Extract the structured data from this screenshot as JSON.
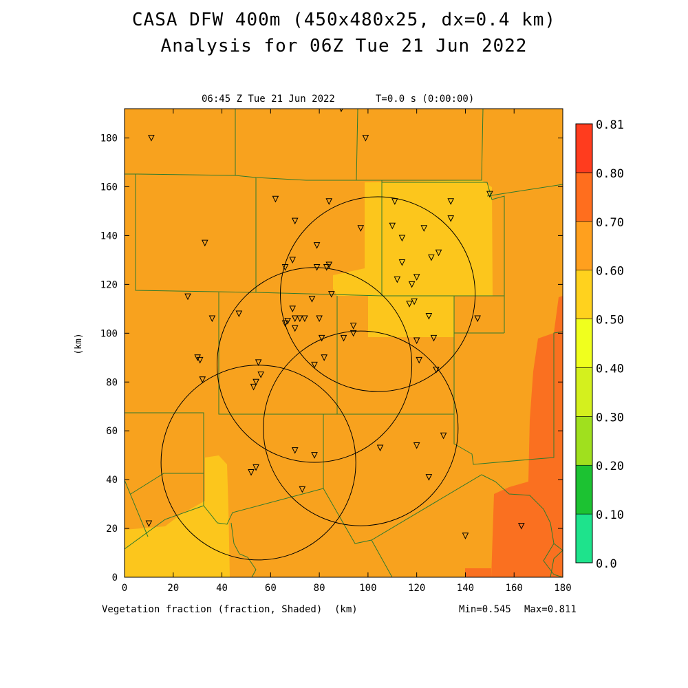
{
  "header": {
    "title": "CASA DFW 400m (450x480x25, dx=0.4 km)",
    "subtitle": "Analysis for 06Z Tue 21 Jun 2022"
  },
  "plot": {
    "valid_time": "06:45 Z Tue 21 Jun 2022",
    "model_time": "T=0.0 s (0:00:00)",
    "y_label": "(km)",
    "x_label": "(km)",
    "field_label": "Vegetation fraction (fraction, Shaded)",
    "min_label": "Min=0.545",
    "max_label": "Max=0.811",
    "x_range": [
      0,
      180
    ],
    "y_range": [
      0,
      192
    ],
    "x_ticks": [
      "0",
      "20",
      "40",
      "60",
      "80",
      "100",
      "120",
      "140",
      "160",
      "180"
    ],
    "y_ticks": [
      "0",
      "20",
      "40",
      "60",
      "80",
      "100",
      "120",
      "140",
      "160",
      "180"
    ]
  },
  "colorbar": {
    "levels": [
      "0.0",
      "0.10",
      "0.20",
      "0.30",
      "0.40",
      "0.50",
      "0.60",
      "0.70",
      "0.80",
      "0.81"
    ],
    "colors": [
      "#1ee38c",
      "#1cc232",
      "#a0e01e",
      "#d4f01e",
      "#f0ff1e",
      "#ffd21e",
      "#ffa01e",
      "#ff6e1e",
      "#ff3c1e"
    ]
  },
  "colors": {
    "base": "#f8a21e",
    "yellow": "#fcc61c",
    "darkorange": "#fa7020",
    "county_line": "#2e7a2e"
  },
  "radars": [
    {
      "cx": 55,
      "cy": 47
    },
    {
      "cx": 78,
      "cy": 87
    },
    {
      "cx": 97,
      "cy": 61
    },
    {
      "cx": 104,
      "cy": 116
    }
  ],
  "stations": [
    [
      11,
      180
    ],
    [
      33,
      137
    ],
    [
      26,
      115
    ],
    [
      36,
      106
    ],
    [
      30,
      90
    ],
    [
      31,
      89
    ],
    [
      32,
      81
    ],
    [
      47,
      108
    ],
    [
      53,
      78
    ],
    [
      54,
      80
    ],
    [
      55,
      88
    ],
    [
      56,
      83
    ],
    [
      62,
      155
    ],
    [
      66,
      127
    ],
    [
      66,
      104
    ],
    [
      67,
      105
    ],
    [
      69,
      130
    ],
    [
      69,
      110
    ],
    [
      70,
      146
    ],
    [
      70,
      102
    ],
    [
      70,
      106
    ],
    [
      72,
      106
    ],
    [
      74,
      106
    ],
    [
      77,
      114
    ],
    [
      78,
      87
    ],
    [
      79,
      136
    ],
    [
      79,
      127
    ],
    [
      80,
      106
    ],
    [
      81,
      98
    ],
    [
      82,
      90
    ],
    [
      84,
      154
    ],
    [
      84,
      128
    ],
    [
      83,
      127
    ],
    [
      85,
      116
    ],
    [
      89,
      192
    ],
    [
      90,
      98
    ],
    [
      94,
      100
    ],
    [
      94,
      103
    ],
    [
      97,
      143
    ],
    [
      99,
      180
    ],
    [
      110,
      144
    ],
    [
      111,
      154
    ],
    [
      112,
      122
    ],
    [
      114,
      139
    ],
    [
      114,
      129
    ],
    [
      117,
      112
    ],
    [
      118,
      120
    ],
    [
      119,
      113
    ],
    [
      120,
      123
    ],
    [
      120,
      97
    ],
    [
      121,
      89
    ],
    [
      123,
      143
    ],
    [
      125,
      107
    ],
    [
      126,
      131
    ],
    [
      127,
      98
    ],
    [
      128,
      85
    ],
    [
      129,
      133
    ],
    [
      134,
      154
    ],
    [
      134,
      147
    ],
    [
      145,
      106
    ],
    [
      150,
      157
    ],
    [
      52,
      43
    ],
    [
      54,
      45
    ],
    [
      70,
      52
    ],
    [
      78,
      50
    ],
    [
      73,
      36
    ],
    [
      105,
      53
    ],
    [
      120,
      54
    ],
    [
      125,
      41
    ],
    [
      131,
      58
    ],
    [
      10,
      22
    ],
    [
      140,
      17
    ],
    [
      163,
      21
    ]
  ]
}
